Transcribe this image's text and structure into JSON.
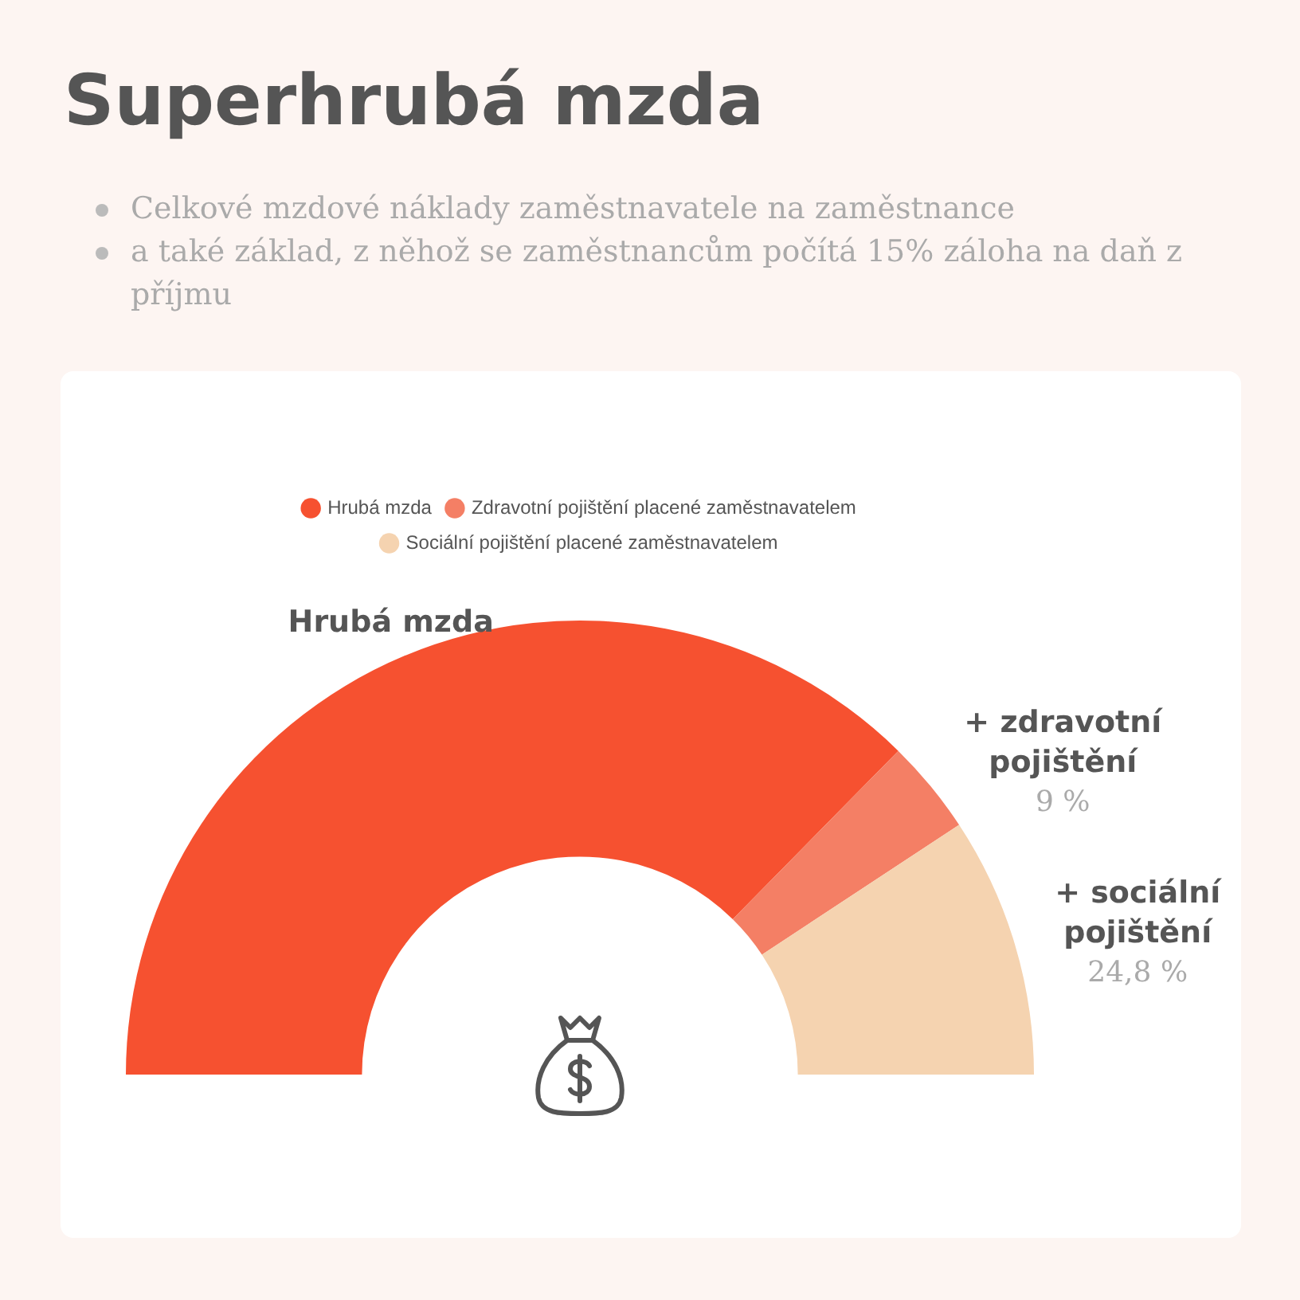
{
  "chart_data": {
    "type": "donut",
    "title": "Superhrubá mzda",
    "subtitle": "Celkové mzdové náklady zaměstnavatele na zaměstnance\na také základ, z něhož se zaměstnancům počítá 15% záloha na daň z příjmu",
    "categories": [
      "Hrubá mzda",
      "Zdravotní pojištění placené zaměstnavatelem",
      "Sociální pojištění placené zaměstnavatelem"
    ],
    "values": [
      100,
      9,
      24.8
    ],
    "colors": [
      "#f65130",
      "#f47f65",
      "#f5d3b0"
    ],
    "value_labels": [
      null,
      "9 %",
      "24,8 %"
    ],
    "annotations": [
      "Hrubá mzda",
      "+ zdravotní pojištění",
      "+ sociální pojištění"
    ],
    "legend": "top"
  }
}
